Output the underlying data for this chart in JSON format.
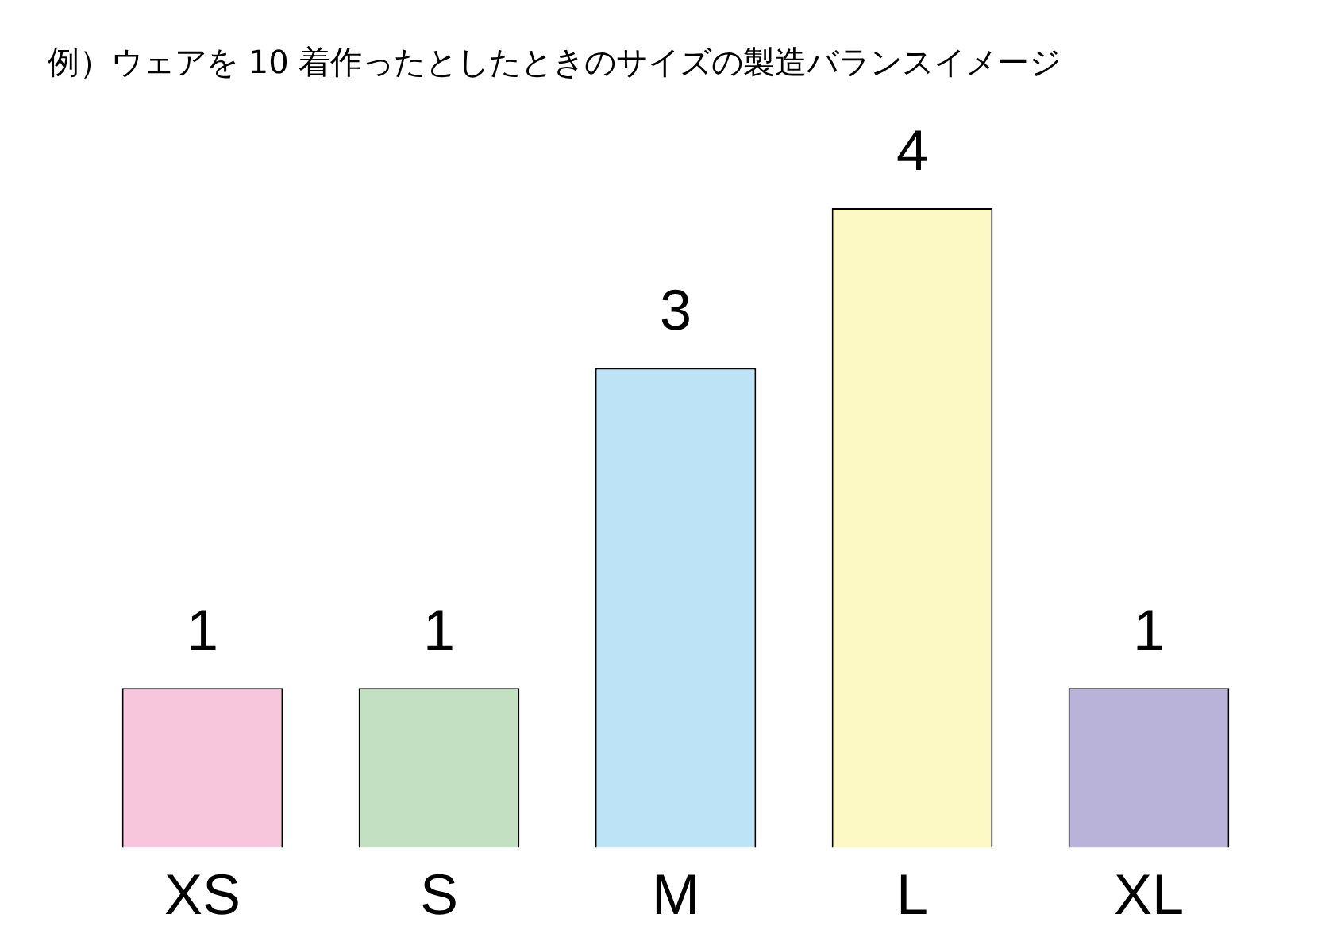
{
  "chart_data": {
    "type": "bar",
    "title": "例）ウェアを 10 着作ったとしたときのサイズの製造バランスイメージ",
    "categories": [
      "XS",
      "S",
      "M",
      "L",
      "XL"
    ],
    "values": [
      1,
      1,
      3,
      4,
      1
    ],
    "colors": [
      "#f7c6dc",
      "#c3e0c2",
      "#bde3f7",
      "#fdf9c4",
      "#bab3d9"
    ],
    "data_labels": true
  }
}
